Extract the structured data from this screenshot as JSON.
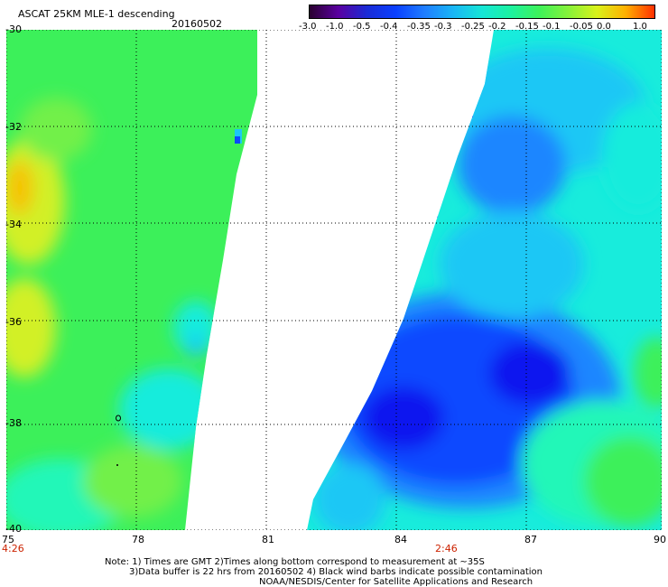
{
  "header": {
    "title": "ASCAT 25KM MLE-1 descending",
    "date": "20160502"
  },
  "colorbar": {
    "labels": [
      "-3.0",
      "-1.0",
      "-0.5",
      "-0.4",
      "-0.35",
      "-0.3",
      "-0.25",
      "-0.2",
      "-0.15",
      "-0.1",
      "-0.05",
      "0.0",
      "1.0"
    ],
    "colors": [
      "#2a0030",
      "#5a00a0",
      "#1a2bd6",
      "#0a40ff",
      "#1f7dff",
      "#19b6f5",
      "#15e6d6",
      "#1cf2a0",
      "#3ef259",
      "#86f23a",
      "#d9f21a",
      "#ffb000",
      "#ff3000"
    ]
  },
  "map": {
    "lat_labels": [
      "-30",
      "-32",
      "-34",
      "-36",
      "-38",
      "-40"
    ],
    "lon_labels": [
      "75",
      "78",
      "81",
      "84",
      "87",
      "90"
    ],
    "time_labels": [
      "4:26",
      "2:46"
    ],
    "colors": {
      "green": "#3cf05a",
      "lightgreen": "#72f04a",
      "yellow": "#d2f028",
      "orange": "#f6c200",
      "cyan": "#18ecdc",
      "aqua": "#22f7b8",
      "skyblue": "#1cc7f5",
      "midblue": "#1e86ff",
      "blue": "#0b49ff",
      "deepblue": "#0a14ef"
    }
  },
  "footer": {
    "line1": "Note: 1) Times are GMT 2)Times along bottom correspond to measurement at ~35S",
    "line2": "3)Data buffer is 22 hrs from 20160502 4) Black wind barbs indicate possible contamination",
    "line3": "NOAA/NESDIS/Center for Satellite Applications and Research"
  }
}
